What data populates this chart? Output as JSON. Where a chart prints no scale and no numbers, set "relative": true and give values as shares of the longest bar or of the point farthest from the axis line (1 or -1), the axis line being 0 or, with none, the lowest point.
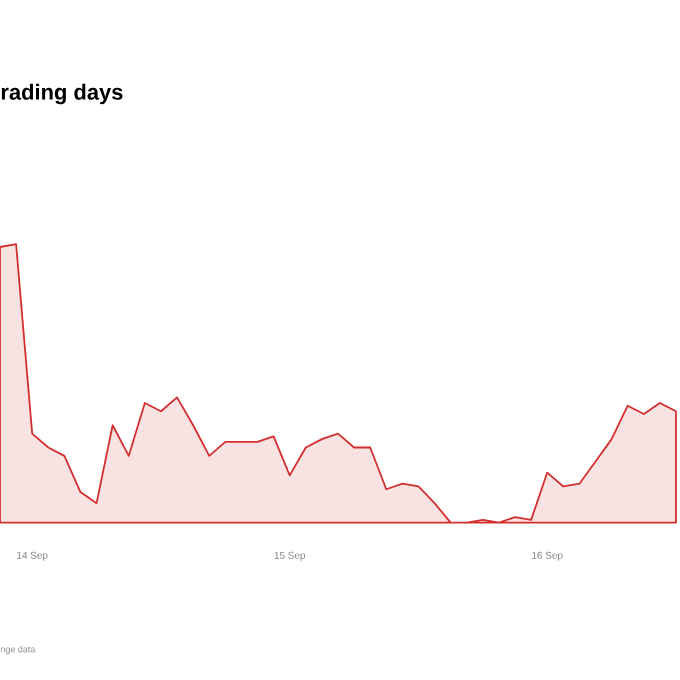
{
  "chart_data": {
    "type": "area",
    "title": "rading days",
    "relative": true,
    "color": "#d32f2f",
    "categories": [
      null,
      null,
      "14 Sep",
      null,
      null,
      null,
      null,
      null,
      null,
      null,
      null,
      null,
      null,
      null,
      null,
      null,
      null,
      null,
      "15 Sep",
      null,
      null,
      null,
      null,
      null,
      null,
      null,
      null,
      null,
      null,
      null,
      null,
      null,
      null,
      null,
      "16 Sep",
      null,
      null,
      null,
      null,
      null,
      null,
      null,
      null
    ],
    "values": [
      0.99,
      1,
      0.32,
      0.27,
      0.24,
      0.11,
      0.07,
      0.35,
      0.24,
      0.43,
      0.4,
      0.45,
      0.35,
      0.24,
      0.29,
      0.29,
      0.29,
      0.31,
      0.17,
      0.27,
      0.3,
      0.32,
      0.27,
      0.27,
      0.12,
      0.14,
      0.13,
      0.07,
      0,
      0,
      0.01,
      0,
      0.02,
      0.01,
      0.18,
      0.13,
      0.14,
      0.22,
      0.3,
      0.42,
      0.39,
      0.43,
      0.4
    ],
    "annotations": [
      "nge data"
    ]
  }
}
